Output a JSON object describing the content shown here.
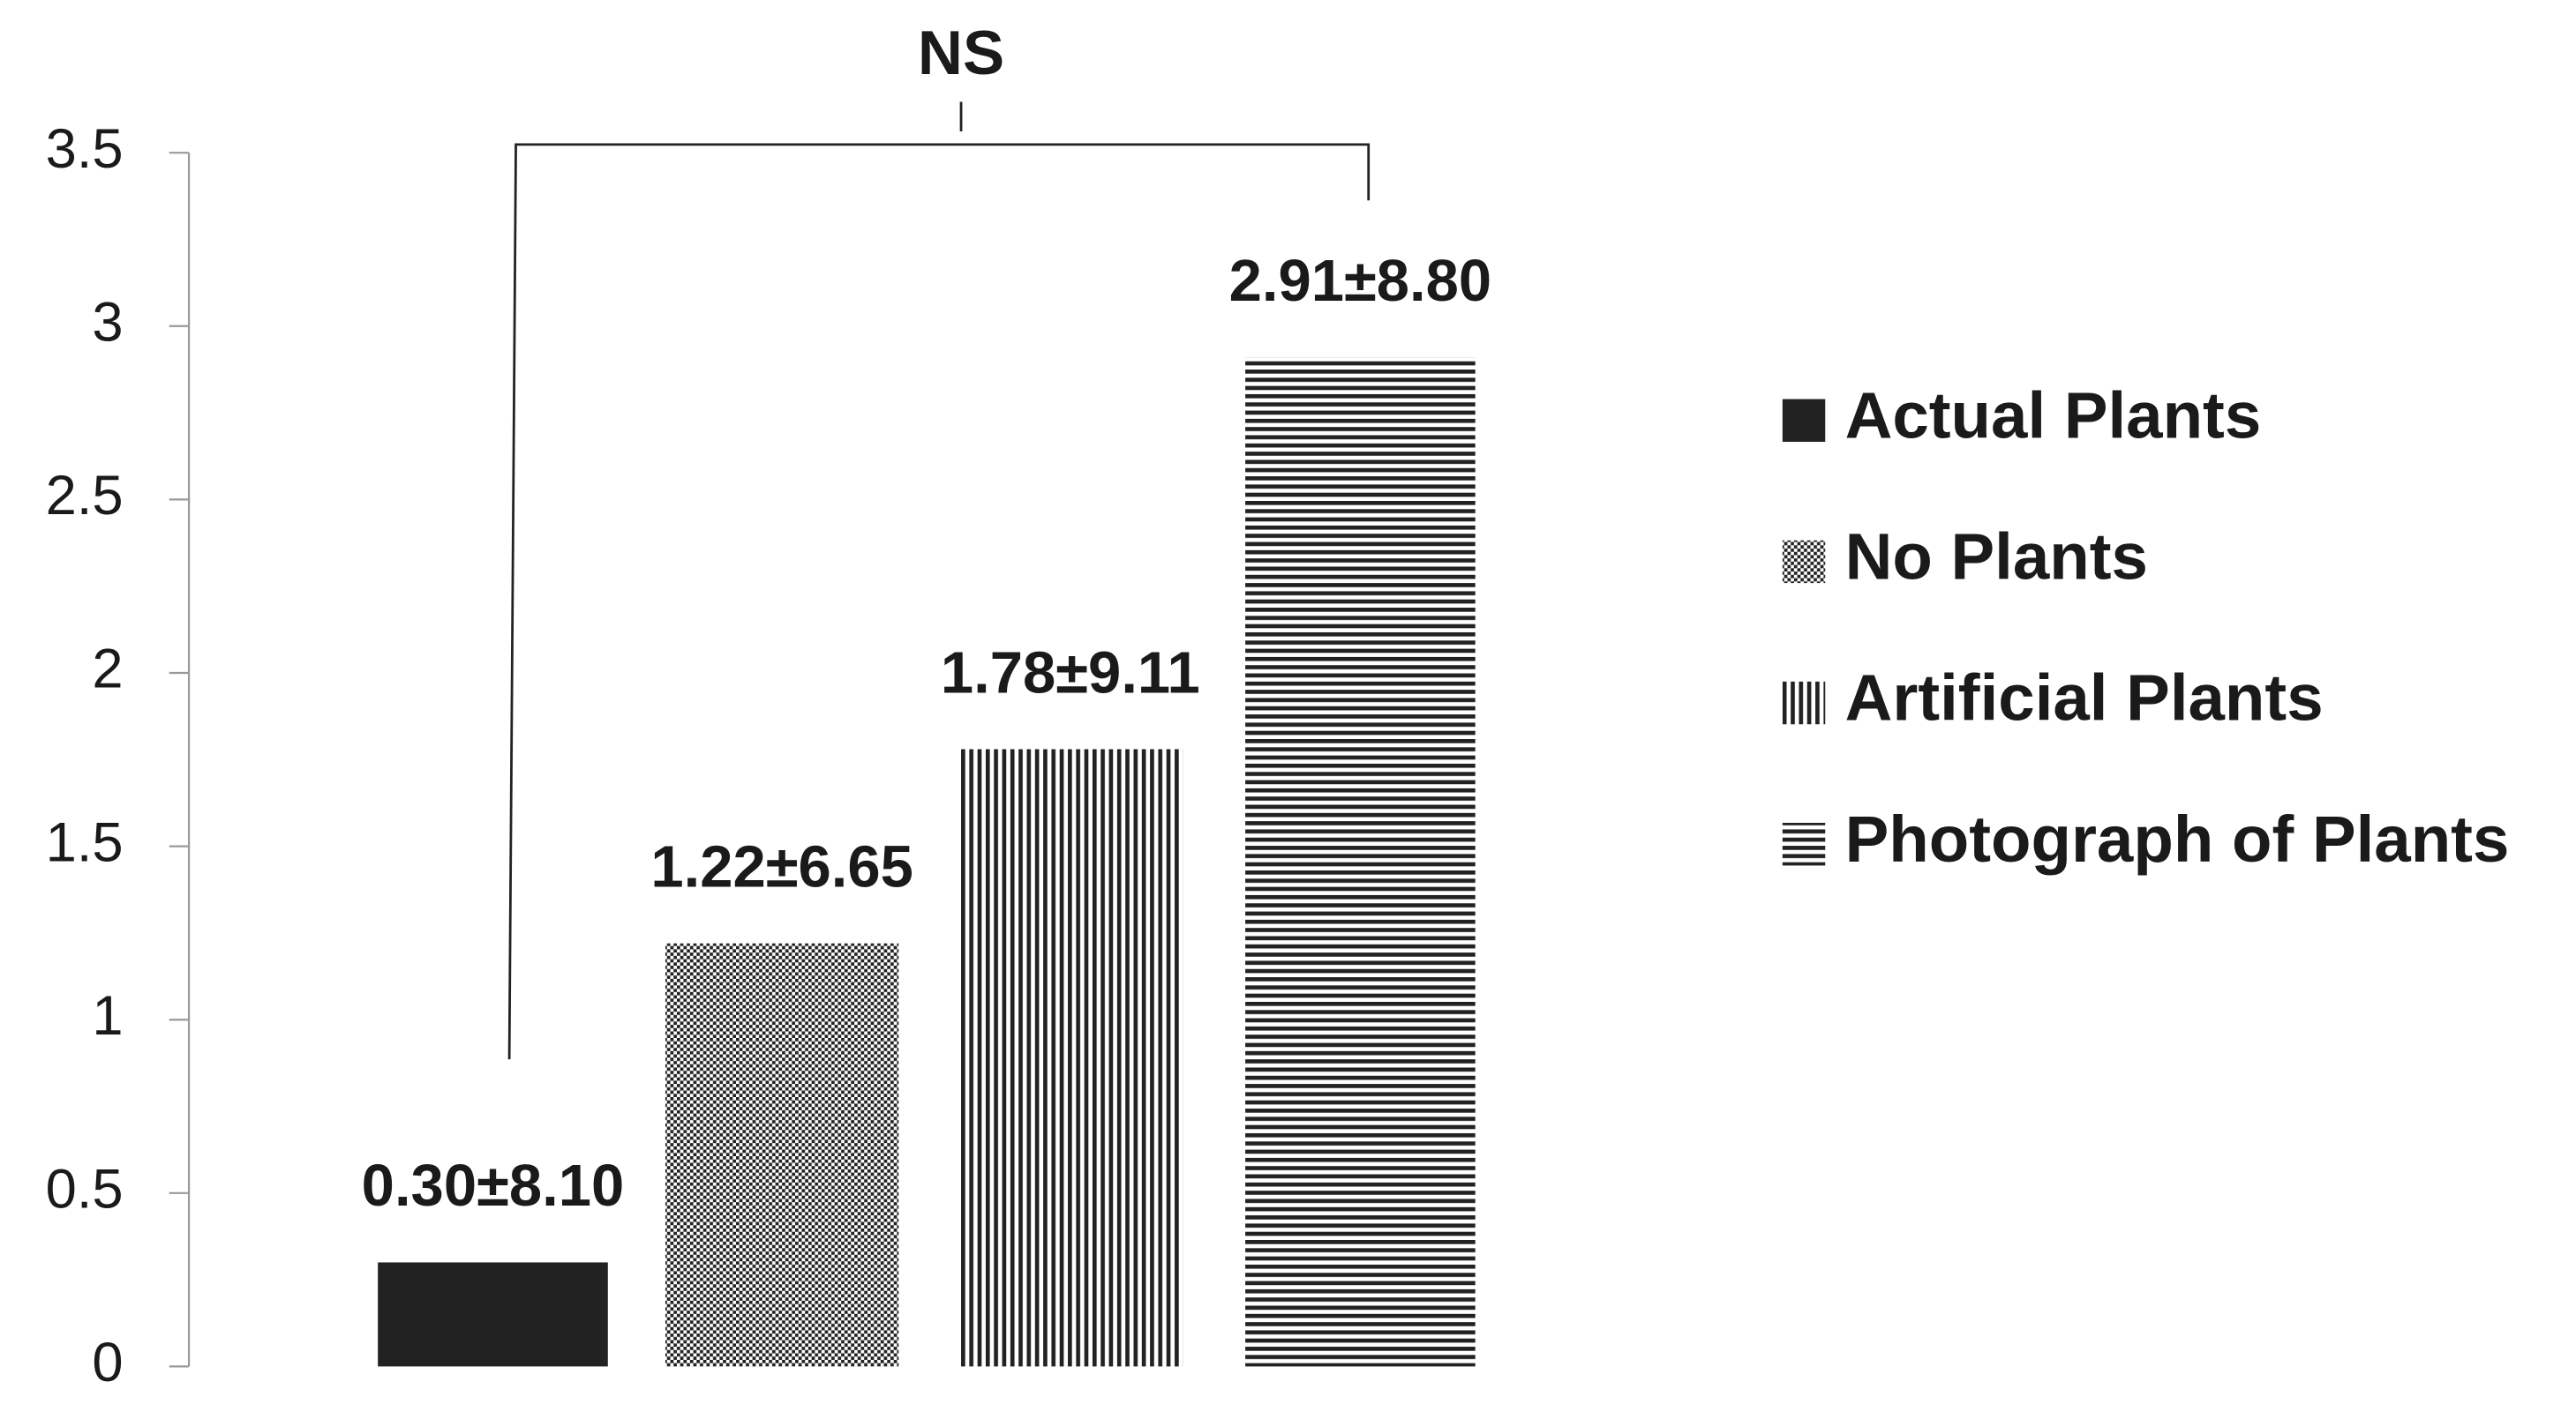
{
  "chart_data": {
    "type": "bar",
    "annotation": "NS",
    "ylim": [
      0,
      3.5
    ],
    "yticks": [
      0,
      0.5,
      1,
      1.5,
      2,
      2.5,
      3,
      3.5
    ],
    "grid": false,
    "legend": "right",
    "series": [
      {
        "name": "Actual Plants",
        "color": "#222222",
        "pattern": "solid",
        "values": [
          0.3
        ],
        "value_labels": [
          "0.30±8.10"
        ]
      },
      {
        "name": "No Plants",
        "color": "#222222",
        "pattern": "dots",
        "values": [
          1.22
        ],
        "value_labels": [
          "1.22±6.65"
        ]
      },
      {
        "name": "Artificial Plants",
        "color": "#222222",
        "pattern": "vertical",
        "values": [
          1.78
        ],
        "value_labels": [
          "1.78±9.11"
        ]
      },
      {
        "name": "Photograph of Plants",
        "color": "#222222",
        "pattern": "horizontal",
        "values": [
          2.91
        ],
        "value_labels": [
          "2.91±8.80"
        ]
      }
    ]
  }
}
